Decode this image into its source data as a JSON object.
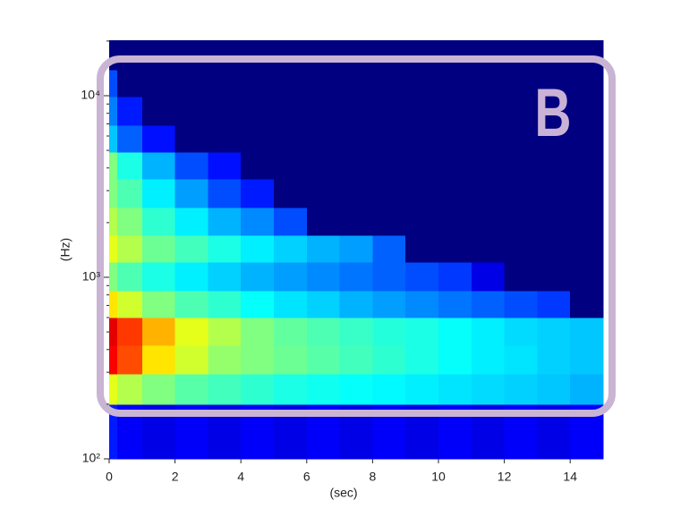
{
  "chart_data": {
    "type": "heatmap",
    "colormap": "jet",
    "xlabel": "(sec)",
    "ylabel": "(Hz)",
    "annotation": "B",
    "xlim": [
      0,
      15
    ],
    "ylim": [
      100,
      20200
    ],
    "ylog": true,
    "xticks": [
      0,
      2,
      4,
      6,
      8,
      10,
      12,
      14
    ],
    "yticks": [
      {
        "value": 100,
        "label": "10²"
      },
      {
        "value": 1000,
        "label": "10³"
      },
      {
        "value": 10000,
        "label": "10⁴"
      }
    ],
    "yminorticks": [
      200,
      300,
      400,
      500,
      600,
      700,
      800,
      900,
      2000,
      3000,
      4000,
      5000,
      6000,
      7000,
      8000,
      9000,
      20000
    ],
    "x_bins": [
      0,
      0.25,
      1,
      2,
      3,
      4,
      5,
      6,
      7,
      8,
      9,
      10,
      11,
      12,
      13,
      14,
      15
    ],
    "y_bins": [
      100,
      200,
      294,
      422,
      600,
      844,
      1213,
      1706,
      2423,
      3483,
      4900,
      6880,
      9890,
      13900,
      20200
    ],
    "values": [
      [
        0.15,
        0.12,
        0.1,
        0.12,
        0.1,
        0.12,
        0.1,
        0.12,
        0.1,
        0.12,
        0.1,
        0.12,
        0.1,
        0.12,
        0.1,
        0.12
      ],
      [
        0.6,
        0.55,
        0.5,
        0.46,
        0.44,
        0.42,
        0.4,
        0.39,
        0.38,
        0.37,
        0.36,
        0.35,
        0.34,
        0.33,
        0.32,
        0.3
      ],
      [
        0.88,
        0.8,
        0.65,
        0.58,
        0.52,
        0.5,
        0.48,
        0.46,
        0.44,
        0.42,
        0.4,
        0.38,
        0.36,
        0.35,
        0.33,
        0.32
      ],
      [
        0.9,
        0.82,
        0.7,
        0.6,
        0.55,
        0.5,
        0.47,
        0.45,
        0.43,
        0.41,
        0.4,
        0.38,
        0.36,
        0.34,
        0.33,
        0.32
      ],
      [
        0.65,
        0.58,
        0.5,
        0.45,
        0.42,
        0.38,
        0.35,
        0.33,
        0.3,
        0.28,
        0.26,
        0.24,
        0.22,
        0.2,
        0.18,
        0
      ],
      [
        0.5,
        0.45,
        0.4,
        0.36,
        0.33,
        0.3,
        0.28,
        0.26,
        0.24,
        0.22,
        0.2,
        0.18,
        0.1,
        0,
        0,
        0
      ],
      [
        0.6,
        0.55,
        0.48,
        0.44,
        0.4,
        0.36,
        0.33,
        0.3,
        0.28,
        0.22,
        0,
        0,
        0,
        0,
        0,
        0
      ],
      [
        0.55,
        0.5,
        0.42,
        0.36,
        0.3,
        0.26,
        0.2,
        0,
        0,
        0,
        0,
        0,
        0,
        0,
        0,
        0
      ],
      [
        0.5,
        0.45,
        0.36,
        0.28,
        0.2,
        0.15,
        0,
        0,
        0,
        0,
        0,
        0,
        0,
        0,
        0,
        0
      ],
      [
        0.5,
        0.4,
        0.3,
        0.2,
        0.14,
        0,
        0,
        0,
        0,
        0,
        0,
        0,
        0,
        0,
        0,
        0
      ],
      [
        0.32,
        0.22,
        0.14,
        0,
        0,
        0,
        0,
        0,
        0,
        0,
        0,
        0,
        0,
        0,
        0,
        0
      ],
      [
        0.25,
        0.15,
        0,
        0,
        0,
        0,
        0,
        0,
        0,
        0,
        0,
        0,
        0,
        0,
        0,
        0
      ],
      [
        0.2,
        0,
        0,
        0,
        0,
        0,
        0,
        0,
        0,
        0,
        0,
        0,
        0,
        0,
        0,
        0
      ],
      [
        0,
        0,
        0,
        0,
        0,
        0,
        0,
        0,
        0,
        0,
        0,
        0,
        0,
        0,
        0,
        0
      ]
    ]
  }
}
